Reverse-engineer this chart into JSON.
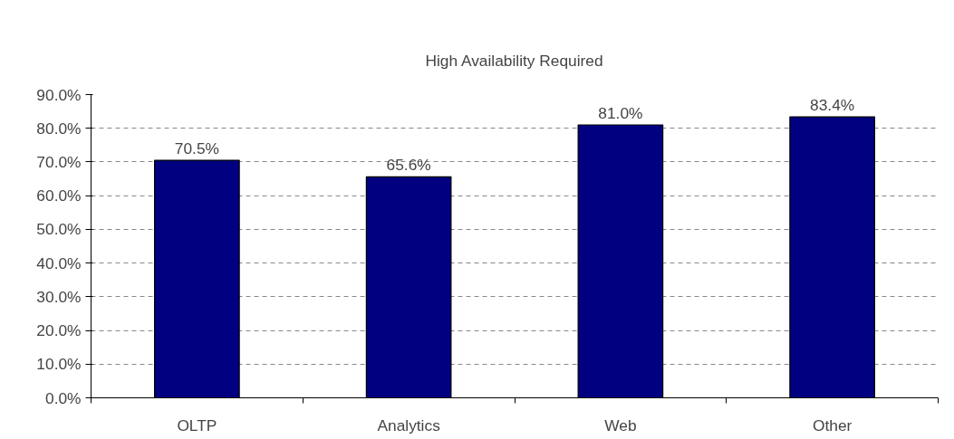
{
  "chart_data": {
    "type": "bar",
    "title": "High Availability Required",
    "categories": [
      "OLTP",
      "Analytics",
      "Web",
      "Other"
    ],
    "values": [
      70.5,
      65.6,
      81.0,
      83.4
    ],
    "value_labels": [
      "70.5%",
      "65.6%",
      "81.0%",
      "83.4%"
    ],
    "color": "#000080",
    "ylim": [
      0,
      90
    ],
    "yticks": [
      {
        "value": 0,
        "label": "0.0%"
      },
      {
        "value": 10,
        "label": "10.0%"
      },
      {
        "value": 20,
        "label": "20.0%"
      },
      {
        "value": 30,
        "label": "30.0%"
      },
      {
        "value": 40,
        "label": "40.0%"
      },
      {
        "value": 50,
        "label": "50.0%"
      },
      {
        "value": 60,
        "label": "60.0%"
      },
      {
        "value": 70,
        "label": "70.0%"
      },
      {
        "value": 80,
        "label": "80.0%"
      },
      {
        "value": 90,
        "label": "90.0%"
      }
    ],
    "grid": "y",
    "legend": false
  }
}
